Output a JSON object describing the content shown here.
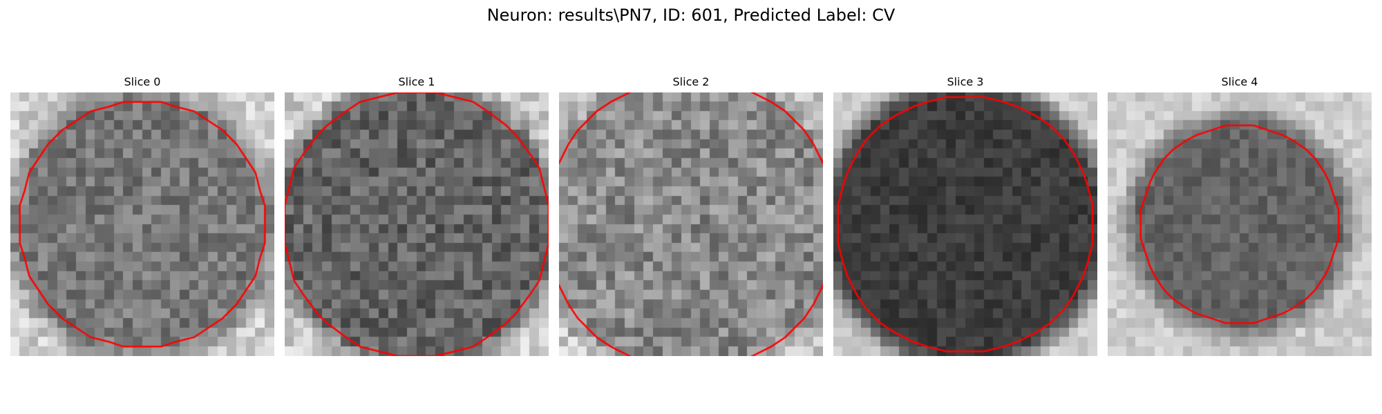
{
  "figure": {
    "title": "Neuron: results\\PN7, ID: 601, Predicted Label: CV"
  },
  "panels": [
    {
      "title": "Slice 0",
      "darkness": 0.5,
      "noise": 0.55,
      "radius": 0.47,
      "contour_radius": 0.47
    },
    {
      "title": "Slice 1",
      "darkness": 0.62,
      "noise": 0.6,
      "radius": 0.5,
      "contour_radius": 0.51
    },
    {
      "title": "Slice 2",
      "darkness": 0.4,
      "noise": 0.7,
      "radius": 0.55,
      "contour_radius": 0.56
    },
    {
      "title": "Slice 3",
      "darkness": 0.85,
      "noise": 0.3,
      "radius": 0.5,
      "contour_radius": 0.49
    },
    {
      "title": "Slice 4",
      "darkness": 0.62,
      "noise": 0.35,
      "radius": 0.38,
      "contour_radius": 0.38
    }
  ],
  "colors": {
    "contour": "#ff0000",
    "background": "#ffffff"
  }
}
